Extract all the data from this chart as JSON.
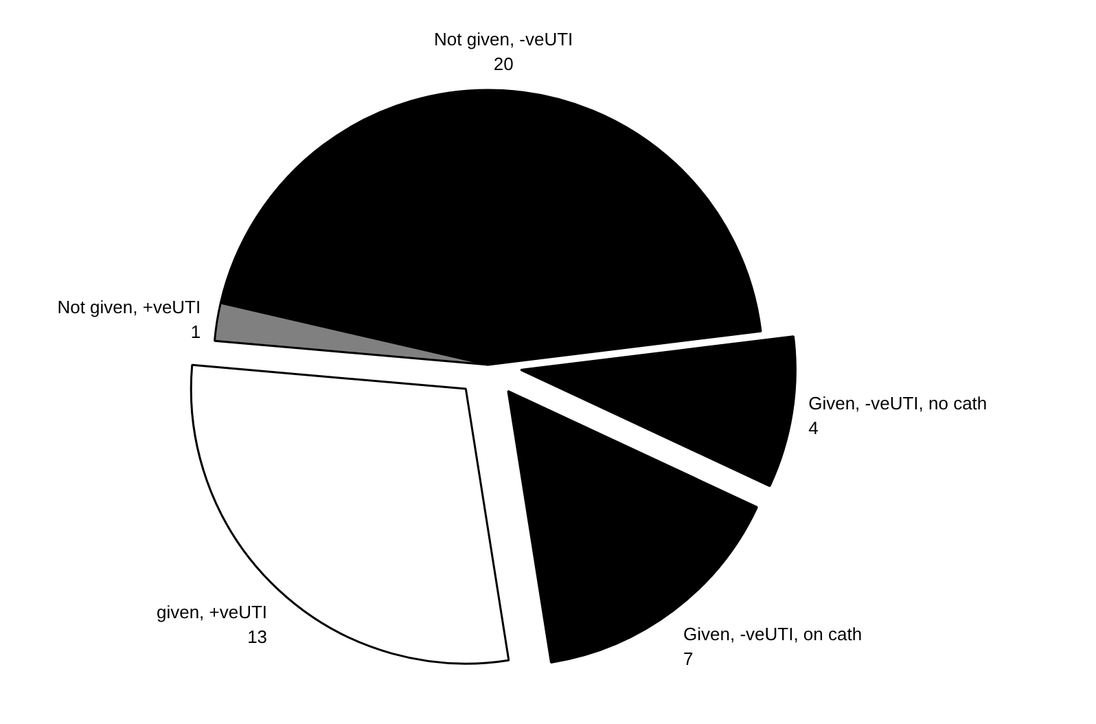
{
  "chart_data": {
    "type": "pie",
    "categories": [
      "Not given, -veUTI",
      "Not given, +veUTI",
      "given, +veUTI",
      "Given, -veUTI, on cath",
      "Given, -veUTI, no cath"
    ],
    "values": [
      20,
      1,
      13,
      7,
      4
    ],
    "colors": [
      "#000000",
      "#808080",
      "#ffffff",
      "#000000",
      "#000000"
    ],
    "data_labels": true
  }
}
